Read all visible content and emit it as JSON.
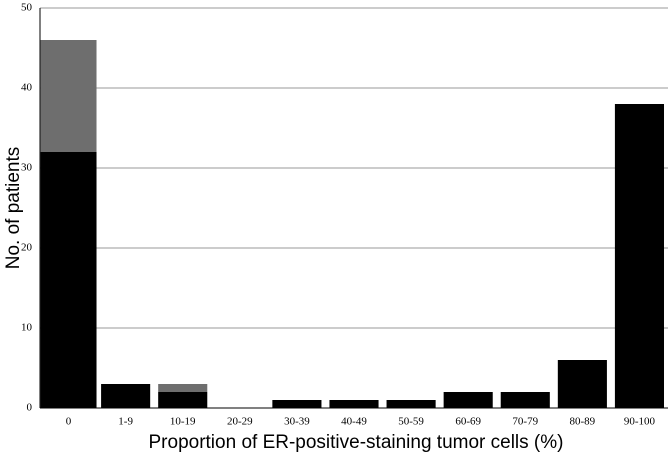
{
  "chart_data": {
    "type": "bar",
    "stacked": true,
    "xlabel": "Proportion of ER-positive-staining tumor cells (%)",
    "ylabel": "No. of patients",
    "categories": [
      "0",
      "1-9",
      "10-19",
      "20-29",
      "30-39",
      "40-49",
      "50-59",
      "60-69",
      "70-79",
      "80-89",
      "90-100"
    ],
    "series": [
      {
        "color": "#000000",
        "values": [
          32,
          3,
          2,
          0,
          1,
          1,
          1,
          2,
          2,
          6,
          38
        ]
      },
      {
        "color": "#6e6e6e",
        "values": [
          14,
          0,
          1,
          0,
          0,
          0,
          0,
          0,
          0,
          0,
          0
        ]
      }
    ],
    "ylim": [
      0,
      50
    ],
    "yticks": [
      0,
      10,
      20,
      30,
      40,
      50
    ],
    "grid": true
  }
}
